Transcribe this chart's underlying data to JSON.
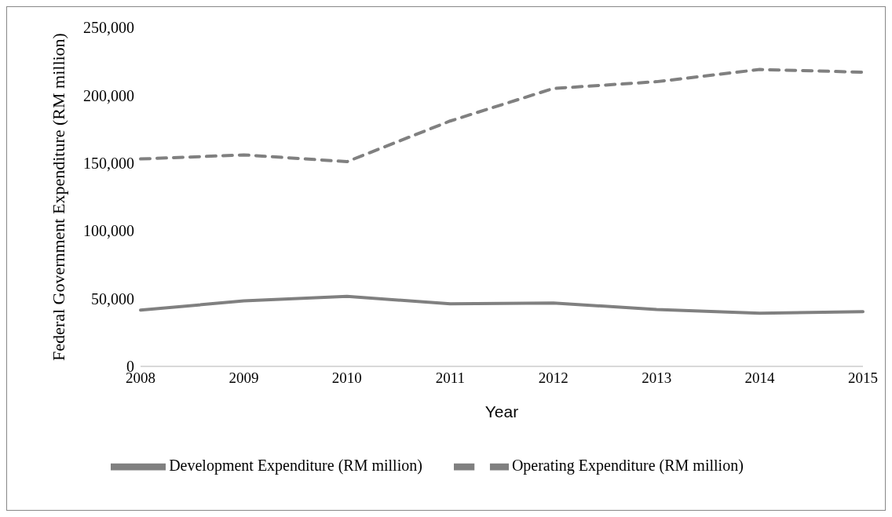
{
  "chart_data": {
    "type": "line",
    "xlabel": "Year",
    "ylabel": "Federal Government Expenditure (RM million)",
    "categories": [
      "2008",
      "2009",
      "2010",
      "2011",
      "2012",
      "2013",
      "2014",
      "2015"
    ],
    "series": [
      {
        "name": "Operating Expenditure (RM million)",
        "color": "#808080",
        "line_style": "dashed",
        "values": [
          153000,
          156000,
          151000,
          181000,
          205000,
          210000,
          219000,
          217000
        ]
      },
      {
        "name": "Development Expenditure (RM million)",
        "color": "#808080",
        "line_style": "solid",
        "values": [
          41500,
          48300,
          51600,
          46100,
          46700,
          42000,
          39200,
          40400
        ]
      }
    ],
    "ylim": [
      0,
      250000
    ],
    "yticks": [
      {
        "value": 0,
        "label": "0"
      },
      {
        "value": 50000,
        "label": "50,000"
      },
      {
        "value": 100000,
        "label": "100,000"
      },
      {
        "value": 150000,
        "label": "150,000"
      },
      {
        "value": 200000,
        "label": "200,000"
      },
      {
        "value": 250000,
        "label": "250,000"
      }
    ],
    "grid": false,
    "legend": "bottom",
    "marker": "none"
  }
}
